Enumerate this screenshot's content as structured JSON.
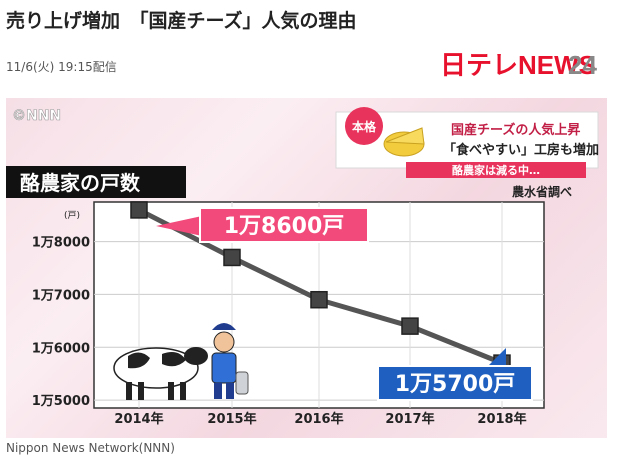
{
  "article": {
    "headline": "売り上げ増加　「国産チーズ」人気の理由",
    "date": "11/6(火) 19:15配信",
    "credit": "Nippon News Network(NNN)"
  },
  "logo": {
    "text": "日テレNEWS24"
  },
  "video": {
    "watermark": "©NNN",
    "tag": "本格",
    "headline_line1": "国産チーズの人気上昇",
    "headline_line2": "「食べやすい」工房も増加",
    "subline": "酪農家は減る中…",
    "chart_title": "酪農家の戸数",
    "source": "農水省調べ",
    "unit": "(戸)",
    "callout_high": "1万8600戸",
    "callout_low": "1万5700戸"
  },
  "chart_data": {
    "type": "line",
    "categories": [
      "2014年",
      "2015年",
      "2016年",
      "2017年",
      "2018年"
    ],
    "values": [
      18600,
      17700,
      16900,
      16400,
      15700
    ],
    "ytick_values": [
      18000,
      17000,
      16000,
      15000
    ],
    "ytick_labels": [
      "1万8000",
      "1万7000",
      "1万6000",
      "1万5000"
    ],
    "ylabel": "(戸)",
    "ylim": [
      14850,
      18750
    ],
    "grid": true,
    "colors": {
      "line": "#555555",
      "marker": "#444444",
      "callout_high": "#f24a7a",
      "callout_low": "#1f5fbf"
    }
  }
}
